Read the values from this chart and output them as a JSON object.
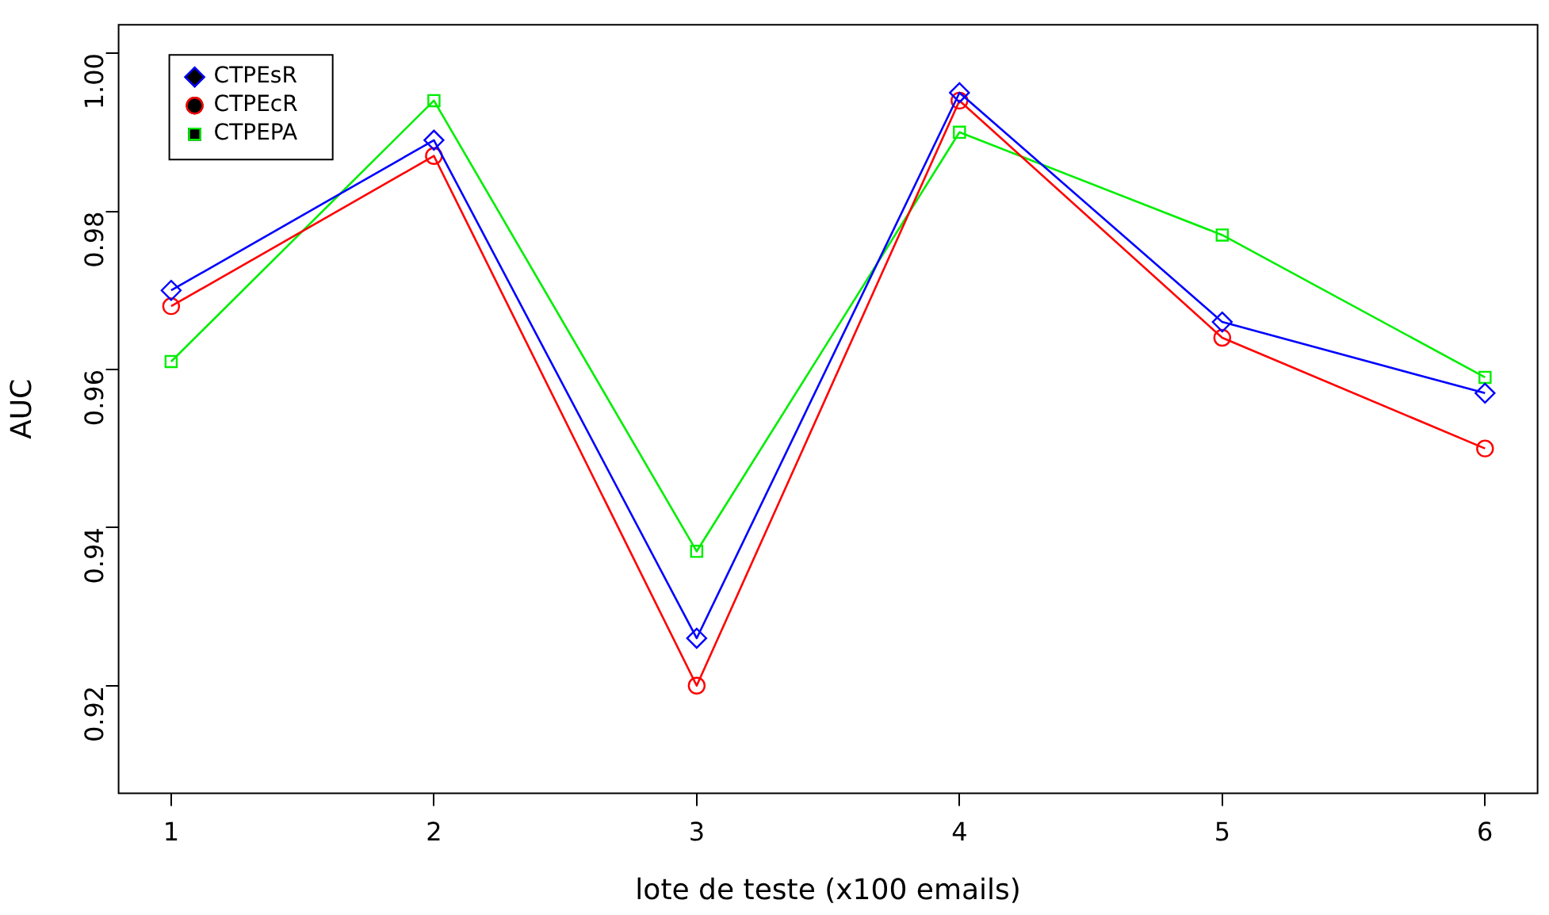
{
  "chart_data": {
    "type": "line",
    "xlabel": "lote de teste (x100 emails)",
    "ylabel": "AUC",
    "x": [
      1,
      2,
      3,
      4,
      5,
      6
    ],
    "xlim": [
      0.8,
      6.2
    ],
    "xticks": [
      1,
      2,
      3,
      4,
      5,
      6
    ],
    "ylim": [
      0.9064,
      1.0036
    ],
    "yticks": [
      0.92,
      0.94,
      0.96,
      0.98,
      {
        "value": 1,
        "label": "1.00"
      }
    ],
    "series": [
      {
        "name": "CTPEsR",
        "color": "#0000ff",
        "marker": "diamond",
        "values": [
          0.97,
          0.989,
          0.926,
          0.995,
          0.966,
          0.957
        ]
      },
      {
        "name": "CTPEcR",
        "color": "#ff0000",
        "marker": "circle",
        "values": [
          0.968,
          0.987,
          0.92,
          0.994,
          0.964,
          0.95
        ]
      },
      {
        "name": "CTPEPA",
        "color": "#00ee00",
        "marker": "square",
        "values": [
          0.961,
          0.994,
          0.937,
          0.99,
          0.977,
          0.959
        ]
      }
    ],
    "legend": "top left",
    "grid": false
  }
}
